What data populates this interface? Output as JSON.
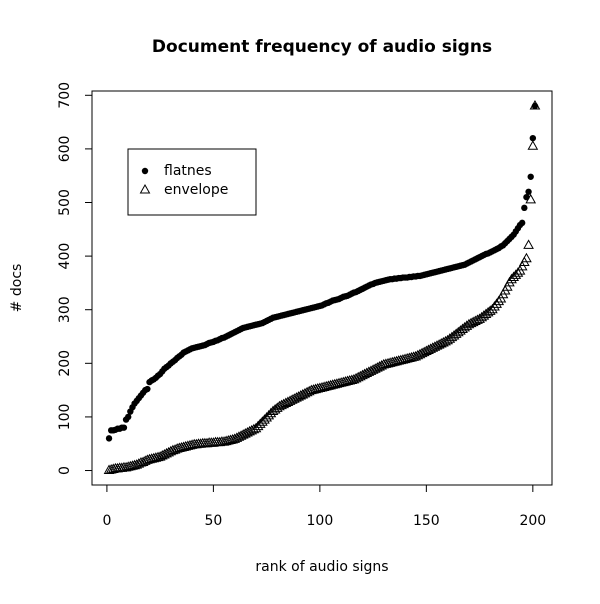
{
  "chart_data": {
    "type": "scatter",
    "title": "Document frequency of audio signs",
    "x_label": "rank of audio signs",
    "y_label": "# docs",
    "x": [
      1,
      2,
      3,
      4,
      5,
      6,
      7,
      8,
      9,
      10,
      11,
      12,
      13,
      14,
      15,
      16,
      17,
      18,
      19,
      20,
      21,
      22,
      23,
      24,
      25,
      26,
      27,
      28,
      29,
      30,
      31,
      32,
      33,
      34,
      35,
      36,
      37,
      38,
      39,
      40,
      41,
      42,
      43,
      44,
      45,
      46,
      47,
      48,
      49,
      50,
      51,
      52,
      53,
      54,
      55,
      56,
      57,
      58,
      59,
      60,
      61,
      62,
      63,
      64,
      65,
      66,
      67,
      68,
      69,
      70,
      71,
      72,
      73,
      74,
      75,
      76,
      77,
      78,
      79,
      80,
      81,
      82,
      83,
      84,
      85,
      86,
      87,
      88,
      89,
      90,
      91,
      92,
      93,
      94,
      95,
      96,
      97,
      98,
      99,
      100,
      101,
      102,
      103,
      104,
      105,
      106,
      107,
      108,
      109,
      110,
      111,
      112,
      113,
      114,
      115,
      116,
      117,
      118,
      119,
      120,
      121,
      122,
      123,
      124,
      125,
      126,
      127,
      128,
      129,
      130,
      131,
      132,
      133,
      134,
      135,
      136,
      137,
      138,
      139,
      140,
      141,
      142,
      143,
      144,
      145,
      146,
      147,
      148,
      149,
      150,
      151,
      152,
      153,
      154,
      155,
      156,
      157,
      158,
      159,
      160,
      161,
      162,
      163,
      164,
      165,
      166,
      167,
      168,
      169,
      170,
      171,
      172,
      173,
      174,
      175,
      176,
      177,
      178,
      179,
      180,
      181,
      182,
      183,
      184,
      185,
      186,
      187,
      188,
      189,
      190,
      191,
      192,
      193,
      194,
      195,
      196,
      197,
      198,
      199,
      200,
      201
    ],
    "series": [
      {
        "name": "flatnes",
        "color": "#000000",
        "marker": "circle",
        "values": [
          60,
          75,
          75,
          76,
          78,
          78,
          80,
          80,
          95,
          100,
          110,
          118,
          125,
          130,
          135,
          140,
          145,
          150,
          152,
          165,
          168,
          170,
          173,
          177,
          180,
          185,
          190,
          193,
          196,
          200,
          203,
          206,
          210,
          213,
          216,
          220,
          222,
          224,
          226,
          228,
          229,
          230,
          231,
          232,
          233,
          234,
          236,
          238,
          239,
          240,
          242,
          243,
          245,
          247,
          248,
          250,
          252,
          254,
          256,
          258,
          260,
          262,
          264,
          266,
          267,
          268,
          269,
          270,
          271,
          272,
          273,
          274,
          275,
          277,
          279,
          281,
          283,
          285,
          286,
          287,
          288,
          289,
          290,
          291,
          292,
          293,
          294,
          295,
          296,
          297,
          298,
          299,
          300,
          301,
          302,
          303,
          304,
          305,
          306,
          307,
          308,
          310,
          312,
          313,
          315,
          317,
          318,
          319,
          320,
          322,
          324,
          325,
          326,
          328,
          330,
          332,
          333,
          335,
          337,
          339,
          341,
          343,
          345,
          347,
          348,
          350,
          351,
          352,
          353,
          354,
          355,
          356,
          357,
          357,
          358,
          358,
          359,
          359,
          360,
          360,
          360,
          361,
          361,
          362,
          362,
          363,
          363,
          364,
          365,
          366,
          367,
          368,
          369,
          370,
          371,
          372,
          373,
          374,
          375,
          376,
          377,
          378,
          379,
          380,
          381,
          382,
          383,
          384,
          386,
          388,
          390,
          392,
          394,
          396,
          398,
          400,
          402,
          404,
          405,
          407,
          409,
          411,
          413,
          415,
          418,
          420,
          424,
          428,
          432,
          436,
          440,
          446,
          452,
          458,
          462,
          490,
          510,
          520,
          548,
          620,
          680
        ]
      },
      {
        "name": "envelope",
        "color": "#000000",
        "marker": "triangle",
        "values": [
          0,
          1,
          2,
          3,
          3,
          4,
          4,
          5,
          5,
          6,
          7,
          8,
          9,
          10,
          12,
          14,
          15,
          17,
          19,
          20,
          21,
          22,
          23,
          24,
          25,
          27,
          29,
          31,
          33,
          35,
          37,
          38,
          40,
          41,
          42,
          43,
          44,
          45,
          46,
          47,
          48,
          48,
          49,
          49,
          50,
          50,
          50,
          51,
          51,
          51,
          52,
          52,
          52,
          53,
          53,
          54,
          55,
          56,
          57,
          58,
          60,
          62,
          64,
          66,
          68,
          70,
          72,
          74,
          76,
          78,
          82,
          86,
          90,
          94,
          98,
          102,
          106,
          110,
          113,
          116,
          119,
          121,
          123,
          125,
          127,
          129,
          131,
          133,
          135,
          137,
          139,
          141,
          143,
          145,
          147,
          149,
          150,
          151,
          152,
          153,
          154,
          155,
          156,
          157,
          158,
          159,
          160,
          161,
          162,
          163,
          164,
          165,
          166,
          167,
          168,
          169,
          171,
          173,
          175,
          177,
          179,
          181,
          183,
          185,
          187,
          189,
          191,
          193,
          195,
          197,
          198,
          199,
          200,
          201,
          202,
          203,
          204,
          205,
          206,
          207,
          208,
          209,
          210,
          211,
          212,
          214,
          216,
          218,
          220,
          222,
          224,
          226,
          228,
          230,
          232,
          234,
          236,
          238,
          240,
          242,
          245,
          248,
          251,
          254,
          257,
          260,
          263,
          266,
          269,
          272,
          274,
          276,
          278,
          280,
          282,
          285,
          288,
          291,
          294,
          297,
          300,
          305,
          310,
          315,
          320,
          328,
          335,
          342,
          350,
          356,
          360,
          364,
          368,
          372,
          380,
          388,
          395,
          420,
          505,
          605,
          680
        ]
      }
    ],
    "xlim": [
      -7,
      209
    ],
    "xticks": [
      0,
      50,
      100,
      150,
      200
    ],
    "ylim": [
      -27,
      708
    ],
    "yticks": [
      0,
      100,
      200,
      300,
      400,
      500,
      600,
      700
    ],
    "legend": "top-left"
  }
}
